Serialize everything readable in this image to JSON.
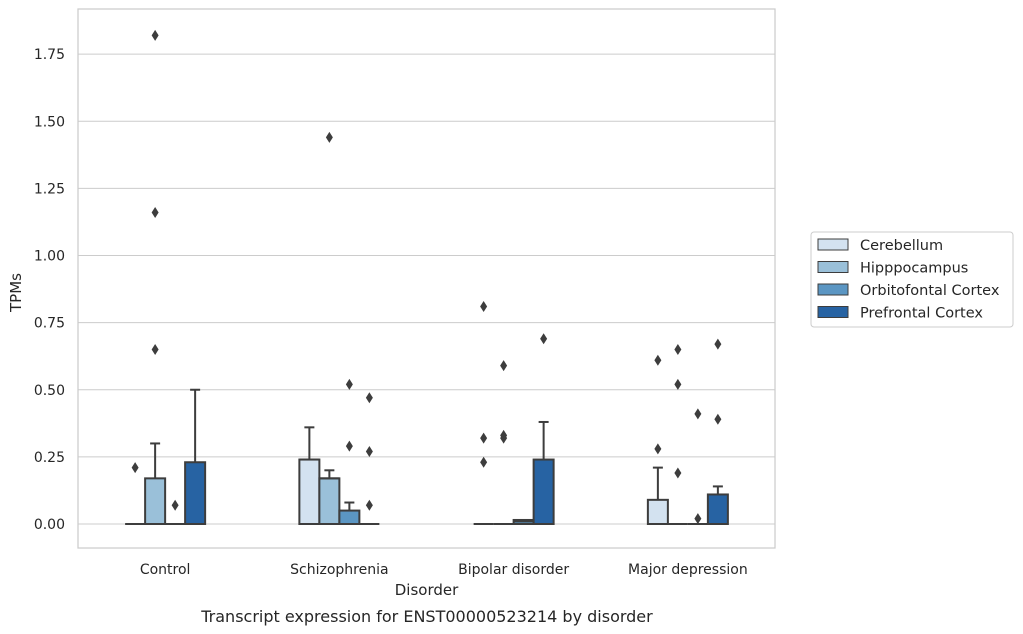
{
  "caption": "Transcript expression for ENST00000523214 by disorder",
  "chart_data": {
    "type": "box",
    "title": "",
    "xlabel": "Disorder",
    "ylabel": "TPMs",
    "ylim": [
      -0.09,
      1.92
    ],
    "yticks": [
      "0.00",
      "0.25",
      "0.50",
      "0.75",
      "1.00",
      "1.25",
      "1.50",
      "1.75"
    ],
    "grid": "horizontal",
    "legend_position": "right",
    "categories": [
      "Control",
      "Schizophrenia",
      "Bipolar disorder",
      "Major depression"
    ],
    "series": [
      {
        "name": "Cerebellum",
        "color": "#d3e2f0",
        "boxes": [
          {
            "q1": 0,
            "median": 0,
            "q3": 0,
            "whisker_low": 0,
            "whisker_high": 0,
            "outliers": [
              0.21
            ]
          },
          {
            "q1": 0,
            "median": 0.24,
            "q3": 0.24,
            "whisker_low": 0,
            "whisker_high": 0.36,
            "outliers": []
          },
          {
            "q1": 0,
            "median": 0,
            "q3": 0,
            "whisker_low": 0,
            "whisker_high": 0,
            "outliers": [
              0.23,
              0.32,
              0.81
            ]
          },
          {
            "q1": 0,
            "median": 0,
            "q3": 0.09,
            "whisker_low": 0,
            "whisker_high": 0.21,
            "outliers": [
              0.28,
              0.61
            ]
          }
        ]
      },
      {
        "name": "Hipppocampus",
        "color": "#9ac0d9",
        "boxes": [
          {
            "q1": 0,
            "median": 0,
            "q3": 0.17,
            "whisker_low": 0,
            "whisker_high": 0.3,
            "outliers": [
              0.65,
              1.16,
              1.82
            ]
          },
          {
            "q1": 0,
            "median": 0.17,
            "q3": 0.17,
            "whisker_low": 0,
            "whisker_high": 0.2,
            "outliers": [
              1.44
            ]
          },
          {
            "q1": 0,
            "median": 0,
            "q3": 0,
            "whisker_low": 0,
            "whisker_high": 0,
            "outliers": [
              0.32,
              0.33,
              0.59
            ]
          },
          {
            "q1": 0,
            "median": 0,
            "q3": 0,
            "whisker_low": 0,
            "whisker_high": 0,
            "outliers": [
              0.19,
              0.52,
              0.65
            ]
          }
        ]
      },
      {
        "name": "Orbitofontal Cortex",
        "color": "#5b96c3",
        "boxes": [
          {
            "q1": 0,
            "median": 0,
            "q3": 0,
            "whisker_low": 0,
            "whisker_high": 0,
            "outliers": [
              0.07
            ]
          },
          {
            "q1": 0,
            "median": 0,
            "q3": 0.05,
            "whisker_low": 0,
            "whisker_high": 0.08,
            "outliers": [
              0.29,
              0.52
            ]
          },
          {
            "q1": 0,
            "median": 0.01,
            "q3": 0.015,
            "whisker_low": 0,
            "whisker_high": 0.015,
            "outliers": []
          },
          {
            "q1": 0,
            "median": 0,
            "q3": 0,
            "whisker_low": 0,
            "whisker_high": 0,
            "outliers": [
              0.02,
              0.41
            ]
          }
        ]
      },
      {
        "name": "Prefrontal Cortex",
        "color": "#2763a3",
        "boxes": [
          {
            "q1": 0,
            "median": 0,
            "q3": 0.23,
            "whisker_low": 0,
            "whisker_high": 0.5,
            "outliers": []
          },
          {
            "q1": 0,
            "median": 0,
            "q3": 0,
            "whisker_low": 0,
            "whisker_high": 0,
            "outliers": [
              0.07,
              0.27,
              0.47
            ]
          },
          {
            "q1": 0,
            "median": 0,
            "q3": 0.24,
            "whisker_low": 0,
            "whisker_high": 0.38,
            "outliers": [
              0.69
            ]
          },
          {
            "q1": 0,
            "median": 0,
            "q3": 0.11,
            "whisker_low": 0,
            "whisker_high": 0.14,
            "outliers": [
              0.39,
              0.67
            ]
          }
        ]
      }
    ]
  }
}
